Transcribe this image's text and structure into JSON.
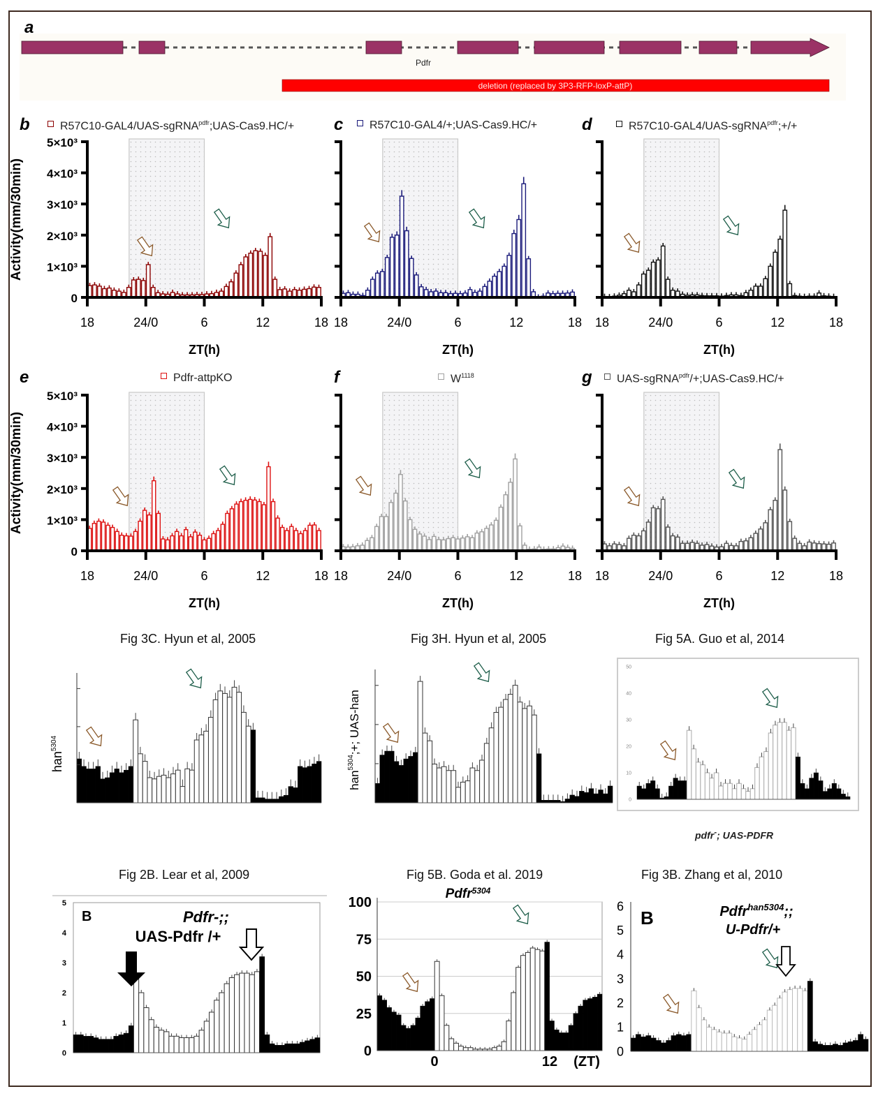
{
  "panel_a": {
    "label": "a",
    "gene_name": "Pdfr",
    "deletion_label": "deletion (replaced by 3P3-RFP-loxP-attP)",
    "exon_color": "#9b3366",
    "deletion_color": "#ff0000"
  },
  "colors": {
    "b": "#8b0000",
    "c": "#1a1a7a",
    "d": "#111111",
    "e": "#dd1111",
    "f": "#a0a0a0",
    "g": "#555555",
    "brown_arrow": "#8b5a2b",
    "green_arrow": "#1e5e4a"
  },
  "axis_common": {
    "ylabel": "Activity(mm/30min)",
    "xlabel": "ZT(h)",
    "yticks": [
      "0",
      "1×10³",
      "2×10³",
      "3×10³",
      "4×10³",
      "5×10³"
    ],
    "xticks": [
      "18",
      "24/0",
      "6",
      "12",
      "18"
    ]
  },
  "chart_data": [
    {
      "id": "b",
      "type": "bar",
      "panel_label": "b",
      "legend": "R57C10-GAL4/UAS-sgRNA",
      "legend_sup": "pdfr",
      "legend_tail": ";UAS-Cas9.HC/+",
      "xlabel": "ZT(h)",
      "ylabel": "Activity(mm/30min)",
      "ylim": [
        0,
        5000
      ],
      "x_range": [
        "ZT18",
        "ZT18 next day"
      ],
      "dark_shade": "ZT0-ZT12 (light phase shaded dotted)",
      "values": [
        380,
        400,
        360,
        280,
        300,
        230,
        200,
        160,
        320,
        560,
        580,
        540,
        1050,
        320,
        150,
        110,
        100,
        160,
        110,
        80,
        80,
        80,
        90,
        90,
        110,
        120,
        160,
        200,
        350,
        500,
        780,
        1050,
        1300,
        1420,
        1500,
        1480,
        1350,
        1950,
        580,
        250,
        270,
        200,
        250,
        230,
        260,
        280,
        330,
        320
      ]
    },
    {
      "id": "c",
      "type": "bar",
      "panel_label": "c",
      "legend": "R57C10-GAL4/+;UAS-Cas9.HC/+",
      "legend_sup": "",
      "legend_tail": "",
      "xlabel": "ZT(h)",
      "ylabel": "Activity(mm/30min)",
      "ylim": [
        0,
        5000
      ],
      "values": [
        130,
        150,
        100,
        100,
        60,
        230,
        580,
        780,
        830,
        1280,
        1930,
        2000,
        3250,
        2140,
        1250,
        720,
        340,
        250,
        180,
        200,
        150,
        150,
        120,
        130,
        120,
        140,
        250,
        160,
        200,
        350,
        520,
        680,
        830,
        1000,
        1350,
        2050,
        2500,
        3650,
        1240,
        180,
        10,
        40,
        140,
        120,
        130,
        130,
        140,
        170
      ]
    },
    {
      "id": "d",
      "type": "bar",
      "panel_label": "d",
      "legend": "R57C10-GAL4/UAS-sgRNA",
      "legend_sup": "pdfr",
      "legend_tail": ";+/+",
      "xlabel": "ZT(h)",
      "ylabel": "Activity(mm/30min)",
      "ylim": [
        0,
        5000
      ],
      "values": [
        30,
        20,
        40,
        70,
        120,
        230,
        180,
        400,
        750,
        870,
        1130,
        1200,
        1650,
        580,
        230,
        200,
        100,
        70,
        80,
        80,
        60,
        50,
        50,
        50,
        40,
        60,
        80,
        80,
        60,
        150,
        230,
        360,
        360,
        600,
        1000,
        1450,
        1870,
        2800,
        440,
        60,
        40,
        30,
        40,
        40,
        140,
        50,
        40,
        30
      ]
    },
    {
      "id": "e",
      "type": "bar",
      "panel_label": "e",
      "legend": "Pdfr-attpKO",
      "legend_sup": "",
      "legend_tail": "",
      "xlabel": "ZT(h)",
      "ylabel": "Activity(mm/30min)",
      "ylim": [
        0,
        5000
      ],
      "values": [
        720,
        880,
        950,
        920,
        820,
        750,
        620,
        500,
        480,
        470,
        620,
        950,
        1300,
        1150,
        2250,
        1200,
        380,
        350,
        480,
        620,
        480,
        680,
        450,
        600,
        500,
        350,
        400,
        550,
        650,
        850,
        1200,
        1350,
        1500,
        1580,
        1620,
        1650,
        1630,
        1580,
        1480,
        2700,
        1580,
        1050,
        750,
        650,
        780,
        650,
        550,
        650,
        820,
        830,
        650
      ]
    },
    {
      "id": "f",
      "type": "bar",
      "panel_label": "f",
      "legend": "W",
      "legend_sup": "1118",
      "legend_tail": "",
      "xlabel": "ZT(h)",
      "ylabel": "Activity(mm/30min)",
      "ylim": [
        0,
        5000
      ],
      "values": [
        130,
        120,
        130,
        160,
        180,
        330,
        420,
        780,
        1100,
        1100,
        1550,
        1850,
        2450,
        1600,
        1000,
        690,
        540,
        470,
        360,
        460,
        360,
        350,
        390,
        420,
        380,
        410,
        450,
        420,
        570,
        610,
        720,
        830,
        980,
        1400,
        1800,
        2200,
        2950,
        800,
        180,
        50,
        60,
        120,
        50,
        60,
        60,
        100,
        150,
        110,
        80
      ]
    },
    {
      "id": "g",
      "type": "bar",
      "panel_label": "g",
      "legend": "UAS-sgRNA",
      "legend_sup": "pdfr",
      "legend_tail": "/+;UAS-Cas9.HC/+",
      "xlabel": "ZT(h)",
      "ylabel": "Activity(mm/30min)",
      "ylim": [
        0,
        5000
      ],
      "values": [
        220,
        160,
        220,
        200,
        160,
        400,
        500,
        480,
        640,
        920,
        1380,
        1350,
        1650,
        760,
        480,
        440,
        240,
        240,
        270,
        240,
        180,
        200,
        150,
        120,
        130,
        240,
        170,
        160,
        300,
        320,
        420,
        560,
        700,
        900,
        1320,
        1620,
        3250,
        1950,
        940,
        400,
        240,
        160,
        280,
        250,
        230,
        220,
        210,
        250
      ]
    },
    {
      "id": "hyun3c",
      "type": "bar",
      "title": "Fig 3C. Hyun et al, 2005",
      "ylabel": "han",
      "ylabel_sup": "5304",
      "note": "unscaled y axis; black = dark phase, white = light phase",
      "values": [
        35,
        29,
        27,
        27,
        29,
        19,
        20,
        24,
        27,
        24,
        26,
        29,
        66,
        39,
        33,
        20,
        19,
        21,
        22,
        20,
        23,
        26,
        13,
        27,
        26,
        50,
        54,
        57,
        68,
        82,
        89,
        87,
        84,
        92,
        88,
        72,
        61,
        58,
        4,
        4,
        3,
        3,
        3,
        5,
        6,
        13,
        12,
        29,
        28,
        29,
        31,
        33
      ],
      "phase": [
        "d",
        "d",
        "d",
        "d",
        "d",
        "d",
        "d",
        "d",
        "d",
        "d",
        "d",
        "d",
        "l",
        "l",
        "l",
        "l",
        "l",
        "l",
        "l",
        "l",
        "l",
        "l",
        "l",
        "l",
        "l",
        "l",
        "l",
        "l",
        "l",
        "l",
        "l",
        "l",
        "l",
        "l",
        "l",
        "l",
        "l",
        "d",
        "d",
        "d",
        "d",
        "d",
        "d",
        "d",
        "d",
        "d",
        "d",
        "d",
        "d",
        "d",
        "d",
        "d"
      ]
    },
    {
      "id": "hyun3h",
      "type": "bar",
      "title": "Fig 3H. Hyun et al, 2005",
      "ylabel": "han",
      "ylabel_sup": "5304",
      "ylabel_tail": ";+; UAS-han",
      "values": [
        15,
        37,
        40,
        40,
        32,
        29,
        34,
        36,
        39,
        94,
        54,
        48,
        30,
        27,
        28,
        25,
        25,
        12,
        16,
        17,
        27,
        25,
        33,
        46,
        58,
        70,
        74,
        80,
        84,
        91,
        78,
        73,
        75,
        68,
        38,
        2,
        2,
        2,
        2,
        1,
        3,
        6,
        5,
        9,
        8,
        11,
        7,
        10,
        7,
        13
      ],
      "phase": [
        "d",
        "d",
        "d",
        "d",
        "d",
        "d",
        "d",
        "d",
        "d",
        "l",
        "l",
        "l",
        "l",
        "l",
        "l",
        "l",
        "l",
        "l",
        "l",
        "l",
        "l",
        "l",
        "l",
        "l",
        "l",
        "l",
        "l",
        "l",
        "l",
        "l",
        "l",
        "l",
        "l",
        "l",
        "d",
        "d",
        "d",
        "d",
        "d",
        "d",
        "d",
        "d",
        "d",
        "d",
        "d",
        "d",
        "d",
        "d",
        "d",
        "d"
      ]
    },
    {
      "id": "guo5a",
      "type": "bar",
      "title": "Fig 5A. Guo et al, 2014",
      "caption": "pdfr",
      "caption_sup": "-",
      "caption_tail": "; UAS-PDFR",
      "ylim": [
        0,
        50
      ],
      "yticks": [
        "0",
        "10",
        "20",
        "30",
        "40",
        "50"
      ],
      "values": [
        5,
        4,
        6,
        7,
        4,
        0.5,
        1,
        5,
        8,
        7,
        7,
        26,
        19,
        14,
        13,
        10,
        8,
        10,
        5,
        6,
        6,
        4,
        6,
        4,
        3,
        4,
        12,
        16,
        18,
        25,
        28,
        29,
        29,
        26,
        27,
        16,
        6,
        4,
        8,
        10,
        7,
        3,
        4,
        6,
        4,
        2,
        1
      ],
      "phase": [
        "d",
        "d",
        "d",
        "d",
        "d",
        "d",
        "d",
        "d",
        "d",
        "d",
        "d",
        "l",
        "l",
        "l",
        "l",
        "l",
        "l",
        "l",
        "l",
        "l",
        "l",
        "l",
        "l",
        "l",
        "l",
        "l",
        "l",
        "l",
        "l",
        "l",
        "l",
        "l",
        "l",
        "l",
        "l",
        "d",
        "d",
        "d",
        "d",
        "d",
        "d",
        "d",
        "d",
        "d",
        "d",
        "d",
        "d"
      ]
    },
    {
      "id": "lear2b",
      "type": "bar",
      "title": "Fig 2B. Lear et al, 2009",
      "inset_label": "B",
      "inset_title_line1": "Pdfr-;;",
      "inset_title_line2": "UAS-Pdfr /+",
      "ylim": [
        0,
        5
      ],
      "yticks": [
        "0",
        "1",
        "2",
        "3",
        "4",
        "5"
      ],
      "values": [
        0.6,
        0.6,
        0.55,
        0.55,
        0.5,
        0.45,
        0.45,
        0.45,
        0.55,
        0.6,
        0.65,
        0.9,
        2.6,
        2.0,
        1.5,
        1.1,
        0.85,
        0.75,
        0.7,
        0.55,
        0.55,
        0.5,
        0.5,
        0.5,
        0.55,
        0.75,
        1.05,
        1.35,
        1.75,
        2.0,
        2.3,
        2.5,
        2.6,
        2.65,
        2.65,
        2.6,
        2.7,
        3.2,
        0.6,
        0.3,
        0.25,
        0.25,
        0.3,
        0.3,
        0.3,
        0.35,
        0.4,
        0.45,
        0.5
      ],
      "phase": [
        "d",
        "d",
        "d",
        "d",
        "d",
        "d",
        "d",
        "d",
        "d",
        "d",
        "d",
        "d",
        "l",
        "l",
        "l",
        "l",
        "l",
        "l",
        "l",
        "l",
        "l",
        "l",
        "l",
        "l",
        "l",
        "l",
        "l",
        "l",
        "l",
        "l",
        "l",
        "l",
        "l",
        "l",
        "l",
        "l",
        "l",
        "d",
        "d",
        "d",
        "d",
        "d",
        "d",
        "d",
        "d",
        "d",
        "d",
        "d",
        "d"
      ]
    },
    {
      "id": "goda5b",
      "type": "bar",
      "title": "Fig 5B. Goda et al. 2019",
      "subtitle": "Pdfr",
      "subtitle_sup": "5304",
      "ylim": [
        0,
        100
      ],
      "yticks": [
        "0",
        "25",
        "50",
        "75",
        "100"
      ],
      "xticks": [
        "0",
        "12"
      ],
      "xunit": "(ZT)",
      "values": [
        37,
        34,
        29,
        26,
        24,
        17,
        15,
        17,
        22,
        30,
        33,
        35,
        60,
        37,
        17,
        8,
        5,
        3,
        2,
        2,
        1,
        1,
        1,
        1,
        2,
        3,
        6,
        20,
        39,
        56,
        64,
        66,
        69,
        68,
        67,
        73,
        20,
        14,
        12,
        12,
        17,
        25,
        30,
        34,
        35,
        36,
        38
      ],
      "phase": [
        "d",
        "d",
        "d",
        "d",
        "d",
        "d",
        "d",
        "d",
        "d",
        "d",
        "d",
        "d",
        "l",
        "l",
        "l",
        "l",
        "l",
        "l",
        "l",
        "l",
        "l",
        "l",
        "l",
        "l",
        "l",
        "l",
        "l",
        "l",
        "l",
        "l",
        "l",
        "l",
        "l",
        "l",
        "l",
        "d",
        "d",
        "d",
        "d",
        "d",
        "d",
        "d",
        "d",
        "d",
        "d",
        "d",
        "d"
      ]
    },
    {
      "id": "zhang3b",
      "type": "bar",
      "title": "Fig 3B. Zhang et al, 2010",
      "inset_label": "B",
      "inset_title_line1": "Pdfr",
      "inset_title_sup": "han5304",
      "inset_title_tail": ";;",
      "inset_title_line2": "U-Pdfr/+",
      "ylim": [
        0,
        6
      ],
      "yticks": [
        "0",
        "1",
        "2",
        "3",
        "4",
        "5",
        "6"
      ],
      "values": [
        0.55,
        0.7,
        0.6,
        0.65,
        0.55,
        0.45,
        0.35,
        0.45,
        0.65,
        0.7,
        0.65,
        0.7,
        2.5,
        1.8,
        1.3,
        1.0,
        0.9,
        0.8,
        0.75,
        0.75,
        0.6,
        0.55,
        0.5,
        0.7,
        0.9,
        1.1,
        1.3,
        1.7,
        1.9,
        2.2,
        2.45,
        2.55,
        2.6,
        2.6,
        2.5,
        2.9,
        0.4,
        0.3,
        0.25,
        0.25,
        0.3,
        0.25,
        0.35,
        0.4,
        0.45,
        0.7,
        0.5
      ],
      "phase": [
        "d",
        "d",
        "d",
        "d",
        "d",
        "d",
        "d",
        "d",
        "d",
        "d",
        "d",
        "d",
        "l",
        "l",
        "l",
        "l",
        "l",
        "l",
        "l",
        "l",
        "l",
        "l",
        "l",
        "l",
        "l",
        "l",
        "l",
        "l",
        "l",
        "l",
        "l",
        "l",
        "l",
        "l",
        "l",
        "d",
        "d",
        "d",
        "d",
        "d",
        "d",
        "d",
        "d",
        "d",
        "d",
        "d",
        "d"
      ]
    }
  ]
}
